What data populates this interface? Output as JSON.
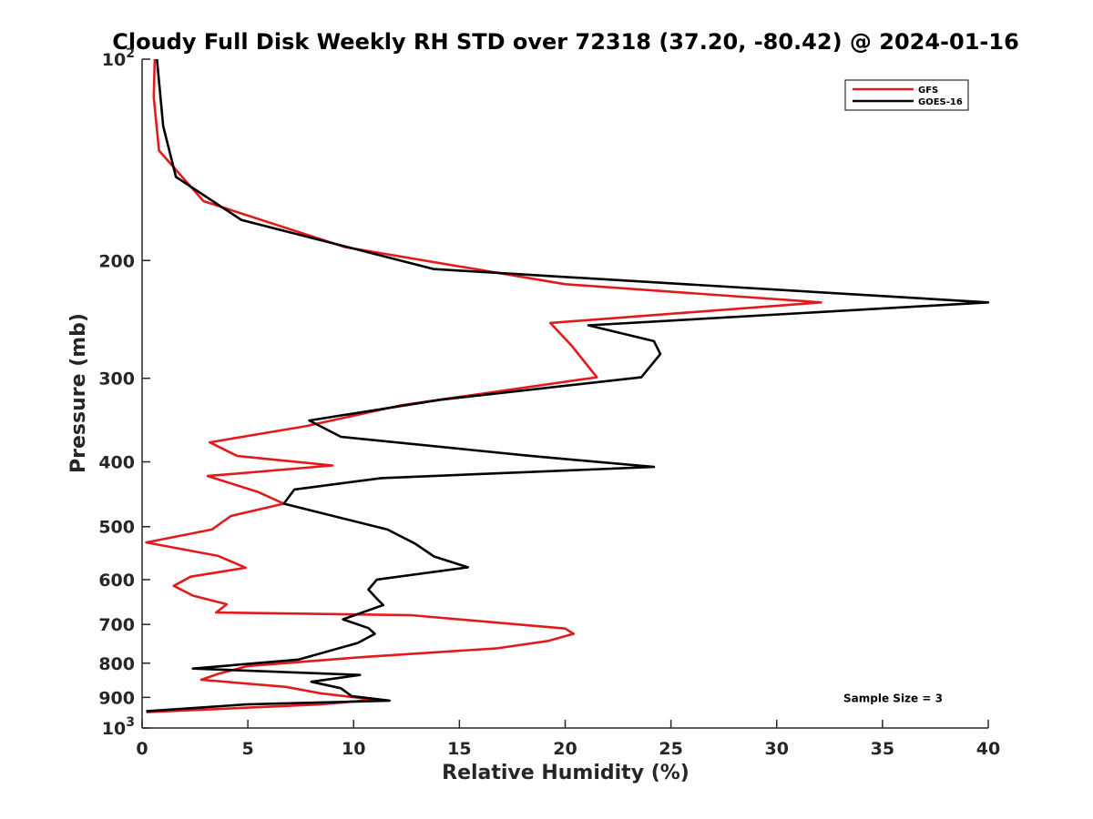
{
  "chart_data": {
    "type": "line",
    "title": "Cloudy Full Disk Weekly RH STD over 72318 (37.20, -80.42) @ 2024-01-16",
    "xlabel": "Relative Humidity (%)",
    "ylabel": "Pressure (mb)",
    "xlim": [
      0,
      40
    ],
    "ylim": [
      100,
      1000
    ],
    "yscale": "log",
    "y_reversed": true,
    "grid": false,
    "x_ticks": [
      0,
      5,
      10,
      15,
      20,
      25,
      30,
      35,
      40
    ],
    "y_ticks": [
      {
        "value": 100,
        "label": "10",
        "sup": "2"
      },
      {
        "value": 200,
        "label": "200"
      },
      {
        "value": 300,
        "label": "300"
      },
      {
        "value": 400,
        "label": "400"
      },
      {
        "value": 500,
        "label": "500"
      },
      {
        "value": 600,
        "label": "600"
      },
      {
        "value": 700,
        "label": "700"
      },
      {
        "value": 800,
        "label": "800"
      },
      {
        "value": 900,
        "label": "900"
      },
      {
        "value": 1000,
        "label": "10",
        "sup": "3"
      }
    ],
    "legend_position": "top-right",
    "series": [
      {
        "name": "GFS",
        "color": "#e31a1c",
        "points": [
          [
            0.6,
            100
          ],
          [
            0.55,
            114
          ],
          [
            0.8,
            137
          ],
          [
            2.9,
            163
          ],
          [
            9.6,
            191
          ],
          [
            20.0,
            217
          ],
          [
            32.1,
            231
          ],
          [
            19.3,
            248
          ],
          [
            20.3,
            268
          ],
          [
            21.5,
            299
          ],
          [
            12.3,
            329
          ],
          [
            7.7,
            354
          ],
          [
            3.2,
            374
          ],
          [
            4.5,
            392
          ],
          [
            9.0,
            405
          ],
          [
            3.1,
            420
          ],
          [
            5.5,
            444
          ],
          [
            6.7,
            462
          ],
          [
            4.2,
            482
          ],
          [
            3.3,
            505
          ],
          [
            0.2,
            528
          ],
          [
            3.6,
            553
          ],
          [
            4.9,
            576
          ],
          [
            2.3,
            594
          ],
          [
            1.5,
            613
          ],
          [
            2.4,
            634
          ],
          [
            4.0,
            653
          ],
          [
            3.5,
            672
          ],
          [
            12.7,
            678
          ],
          [
            20.0,
            710
          ],
          [
            20.4,
            723
          ],
          [
            19.2,
            741
          ],
          [
            16.8,
            760
          ],
          [
            10.5,
            783
          ],
          [
            5.0,
            808
          ],
          [
            3.6,
            830
          ],
          [
            2.8,
            847
          ],
          [
            6.8,
            868
          ],
          [
            8.5,
            888
          ],
          [
            11.0,
            907
          ],
          [
            8.4,
            922
          ],
          [
            0.2,
            947
          ]
        ]
      },
      {
        "name": "GOES-16",
        "color": "#000000",
        "points": [
          [
            0.7,
            100
          ],
          [
            1.0,
            126
          ],
          [
            1.6,
            150
          ],
          [
            4.7,
            174
          ],
          [
            13.8,
            206
          ],
          [
            40.0,
            231
          ],
          [
            21.1,
            250
          ],
          [
            24.2,
            264
          ],
          [
            24.5,
            276
          ],
          [
            23.6,
            299
          ],
          [
            14.1,
            323
          ],
          [
            7.9,
            347
          ],
          [
            9.4,
            367
          ],
          [
            18.4,
            392
          ],
          [
            24.2,
            407
          ],
          [
            11.3,
            423
          ],
          [
            7.2,
            440
          ],
          [
            6.7,
            462
          ],
          [
            11.6,
            505
          ],
          [
            12.9,
            530
          ],
          [
            13.8,
            554
          ],
          [
            15.4,
            575
          ],
          [
            11.1,
            600
          ],
          [
            10.7,
            621
          ],
          [
            11.1,
            641
          ],
          [
            11.4,
            655
          ],
          [
            9.5,
            688
          ],
          [
            10.7,
            709
          ],
          [
            11.0,
            723
          ],
          [
            10.2,
            746
          ],
          [
            7.4,
            790
          ],
          [
            2.4,
            815
          ],
          [
            10.3,
            833
          ],
          [
            8.0,
            853
          ],
          [
            9.4,
            872
          ],
          [
            9.9,
            896
          ],
          [
            11.7,
            910
          ],
          [
            4.9,
            922
          ],
          [
            0.2,
            944
          ]
        ]
      }
    ],
    "annotations": [
      {
        "text": "Sample Size = 3",
        "x": 35.5,
        "y": 903
      }
    ]
  }
}
